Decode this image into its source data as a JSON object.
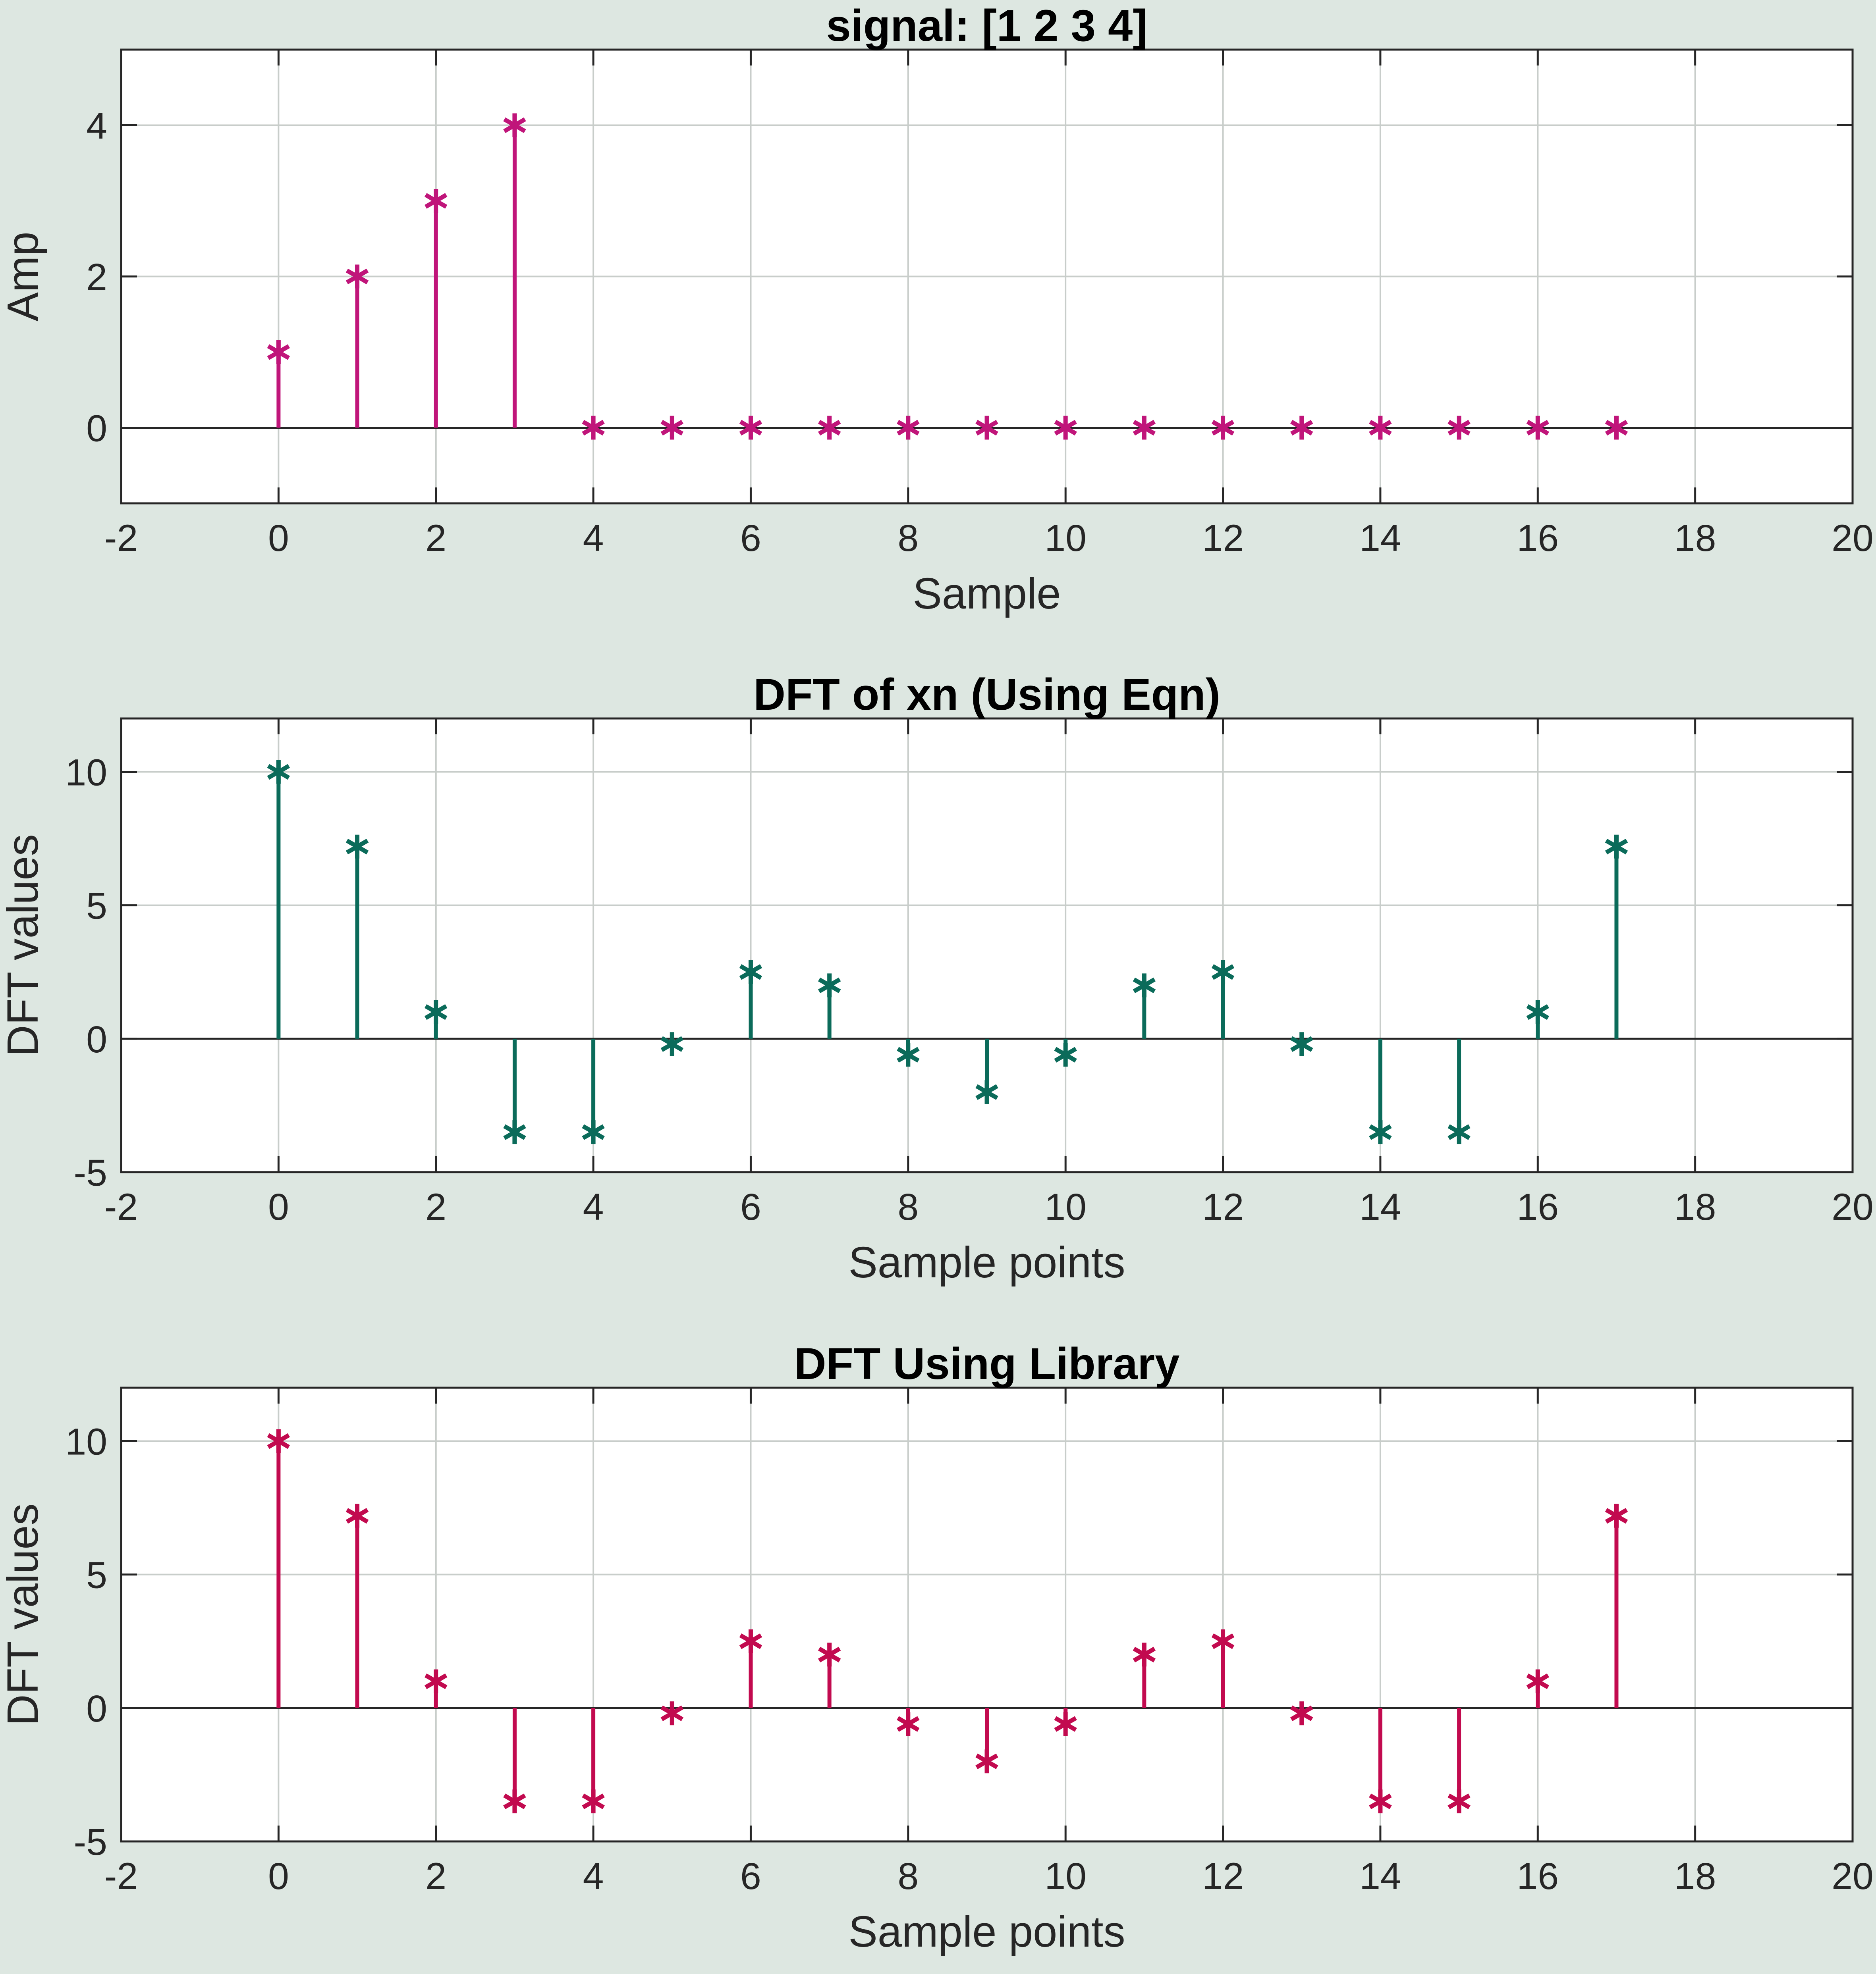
{
  "chart_data": [
    {
      "type": "stem",
      "title": "signal: [1 2 3 4]",
      "xlabel": "Sample",
      "ylabel": "Amp",
      "xlim": [
        -2,
        20
      ],
      "ylim": [
        -1,
        5
      ],
      "xticks": [
        "-2",
        "0",
        "2",
        "4",
        "6",
        "8",
        "10",
        "12",
        "14",
        "16",
        "18",
        "20"
      ],
      "yticks": [
        "0",
        "2",
        "4"
      ],
      "grid": true,
      "marker": "asterisk",
      "color": "#c0157a",
      "x": [
        0,
        1,
        2,
        3,
        4,
        5,
        6,
        7,
        8,
        9,
        10,
        11,
        12,
        13,
        14,
        15,
        16,
        17
      ],
      "values": [
        1,
        2,
        3,
        4,
        0,
        0,
        0,
        0,
        0,
        0,
        0,
        0,
        0,
        0,
        0,
        0,
        0,
        0
      ]
    },
    {
      "type": "stem",
      "title": "DFT of xn (Using Eqn)",
      "xlabel": "Sample points",
      "ylabel": "DFT values",
      "xlim": [
        -2,
        20
      ],
      "ylim": [
        -5,
        12
      ],
      "xticks": [
        "-2",
        "0",
        "2",
        "4",
        "6",
        "8",
        "10",
        "12",
        "14",
        "16",
        "18",
        "20"
      ],
      "yticks": [
        "-5",
        "0",
        "5",
        "10"
      ],
      "grid": true,
      "marker": "asterisk",
      "color": "#0b6b5a",
      "x": [
        0,
        1,
        2,
        3,
        4,
        5,
        6,
        7,
        8,
        9,
        10,
        11,
        12,
        13,
        14,
        15,
        16,
        17
      ],
      "values": [
        10,
        7.2,
        1,
        -3.5,
        -3.5,
        -0.2,
        2.5,
        2,
        -0.6,
        -2,
        -0.6,
        2,
        2.5,
        -0.2,
        -3.5,
        -3.5,
        1,
        7.2
      ]
    },
    {
      "type": "stem",
      "title": "DFT Using Library",
      "xlabel": "Sample points",
      "ylabel": "DFT values",
      "xlim": [
        -2,
        20
      ],
      "ylim": [
        -5,
        12
      ],
      "xticks": [
        "-2",
        "0",
        "2",
        "4",
        "6",
        "8",
        "10",
        "12",
        "14",
        "16",
        "18",
        "20"
      ],
      "yticks": [
        "-5",
        "0",
        "5",
        "10"
      ],
      "grid": true,
      "marker": "asterisk",
      "color": "#c20a4f",
      "x": [
        0,
        1,
        2,
        3,
        4,
        5,
        6,
        7,
        8,
        9,
        10,
        11,
        12,
        13,
        14,
        15,
        16,
        17
      ],
      "values": [
        10,
        7.2,
        1,
        -3.5,
        -3.5,
        -0.2,
        2.5,
        2,
        -0.6,
        -2,
        -0.6,
        2,
        2.5,
        -0.2,
        -3.5,
        -3.5,
        1,
        7.2
      ]
    }
  ]
}
